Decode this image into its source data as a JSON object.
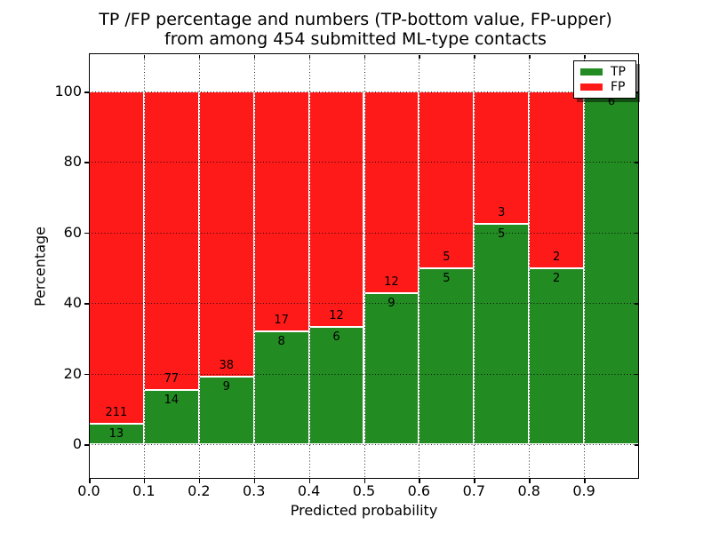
{
  "chart_data": {
    "type": "bar",
    "stacked": true,
    "title": {
      "line1": "TP /FP percentage and numbers (TP-bottom value, FP-upper)",
      "line2": "from among 454 submitted ML-type contacts"
    },
    "xlabel": "Predicted probability",
    "ylabel": "Percentage",
    "x_tick_labels": [
      "0.0",
      "0.1",
      "0.2",
      "0.3",
      "0.4",
      "0.5",
      "0.6",
      "0.7",
      "0.8",
      "0.9"
    ],
    "y_ticks": [
      0,
      20,
      40,
      60,
      80,
      100
    ],
    "xlim": [
      0.0,
      1.0
    ],
    "ylim": [
      -10,
      110
    ],
    "bin_width": 0.1,
    "grid": {
      "on": true,
      "style": "dotted",
      "color": "#000000"
    },
    "series": [
      {
        "name": "TP",
        "color": "#228B22",
        "values": [
          13,
          14,
          9,
          8,
          6,
          9,
          5,
          5,
          2,
          6
        ]
      },
      {
        "name": "FP",
        "color": "#ff1a1a",
        "values": [
          211,
          77,
          38,
          17,
          12,
          12,
          5,
          3,
          2,
          0
        ]
      }
    ],
    "tp_percent_by_bin": [
      5.8,
      15.4,
      19.1,
      32.0,
      33.3,
      42.9,
      50.0,
      62.5,
      50.0,
      100.0
    ],
    "total_contacts": 454,
    "legend": {
      "position": "upper right",
      "entries": [
        "TP",
        "FP"
      ]
    }
  },
  "colors": {
    "tp_green": "#228B22",
    "fp_red": "#ff1a1a",
    "background": "#ffffff",
    "axis": "#000000"
  }
}
